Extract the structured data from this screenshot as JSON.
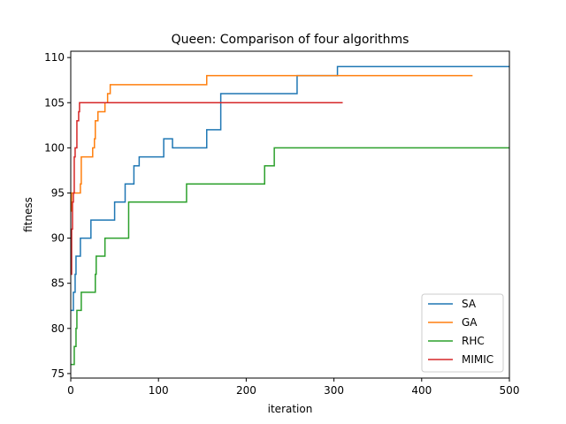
{
  "chart_data": {
    "type": "line",
    "title": "Queen: Comparison of four algorithms",
    "xlabel": "iteration",
    "ylabel": "fitness",
    "xlim": [
      0,
      500
    ],
    "ylim": [
      74.5,
      110.7
    ],
    "xticks": [
      0,
      100,
      200,
      300,
      400,
      500
    ],
    "yticks": [
      75,
      80,
      85,
      90,
      95,
      100,
      105,
      110
    ],
    "grid": false,
    "legend_position": "lower-right",
    "series": [
      {
        "name": "SA",
        "color": "#1f77b4",
        "points": [
          [
            0,
            82
          ],
          [
            3,
            82
          ],
          [
            3,
            84
          ],
          [
            5,
            84
          ],
          [
            5,
            86
          ],
          [
            6,
            86
          ],
          [
            6,
            88
          ],
          [
            11,
            88
          ],
          [
            11,
            90
          ],
          [
            23,
            90
          ],
          [
            23,
            92
          ],
          [
            50,
            92
          ],
          [
            50,
            94
          ],
          [
            62,
            94
          ],
          [
            62,
            96
          ],
          [
            72,
            96
          ],
          [
            72,
            98
          ],
          [
            78,
            98
          ],
          [
            78,
            99
          ],
          [
            106,
            99
          ],
          [
            106,
            101
          ],
          [
            116,
            101
          ],
          [
            116,
            100
          ],
          [
            155,
            100
          ],
          [
            155,
            102
          ],
          [
            171,
            102
          ],
          [
            171,
            106
          ],
          [
            258,
            106
          ],
          [
            258,
            108
          ],
          [
            304,
            108
          ],
          [
            304,
            109
          ],
          [
            500,
            109
          ]
        ]
      },
      {
        "name": "GA",
        "color": "#ff7f0e",
        "points": [
          [
            0,
            93
          ],
          [
            1,
            93
          ],
          [
            1,
            95
          ],
          [
            11,
            95
          ],
          [
            11,
            96
          ],
          [
            12,
            96
          ],
          [
            12,
            99
          ],
          [
            25,
            99
          ],
          [
            25,
            100
          ],
          [
            27,
            100
          ],
          [
            27,
            101
          ],
          [
            28,
            101
          ],
          [
            28,
            103
          ],
          [
            31,
            103
          ],
          [
            31,
            104
          ],
          [
            39,
            104
          ],
          [
            39,
            105
          ],
          [
            42,
            105
          ],
          [
            42,
            106
          ],
          [
            45,
            106
          ],
          [
            45,
            107
          ],
          [
            155,
            107
          ],
          [
            155,
            108
          ],
          [
            458,
            108
          ]
        ]
      },
      {
        "name": "RHC",
        "color": "#2ca02c",
        "points": [
          [
            0,
            76
          ],
          [
            4,
            76
          ],
          [
            4,
            78
          ],
          [
            6,
            78
          ],
          [
            6,
            80
          ],
          [
            7,
            80
          ],
          [
            7,
            82
          ],
          [
            12,
            82
          ],
          [
            12,
            84
          ],
          [
            28,
            84
          ],
          [
            28,
            86
          ],
          [
            29,
            86
          ],
          [
            29,
            88
          ],
          [
            39,
            88
          ],
          [
            39,
            90
          ],
          [
            66,
            90
          ],
          [
            66,
            94
          ],
          [
            132,
            94
          ],
          [
            132,
            96
          ],
          [
            221,
            96
          ],
          [
            221,
            98
          ],
          [
            232,
            98
          ],
          [
            232,
            100
          ],
          [
            500,
            100
          ]
        ]
      },
      {
        "name": "MIMIC",
        "color": "#d62728",
        "points": [
          [
            0,
            86
          ],
          [
            1,
            86
          ],
          [
            1,
            91
          ],
          [
            2,
            91
          ],
          [
            2,
            94
          ],
          [
            3,
            94
          ],
          [
            3,
            95
          ],
          [
            4,
            95
          ],
          [
            4,
            99
          ],
          [
            5,
            99
          ],
          [
            5,
            100
          ],
          [
            7,
            100
          ],
          [
            7,
            103
          ],
          [
            9,
            103
          ],
          [
            9,
            104
          ],
          [
            10,
            104
          ],
          [
            10,
            105
          ],
          [
            310,
            105
          ]
        ]
      }
    ]
  }
}
